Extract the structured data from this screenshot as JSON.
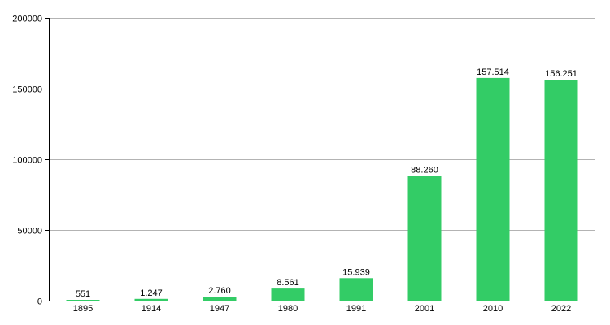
{
  "chart_data": {
    "type": "bar",
    "title": "",
    "xlabel": "",
    "ylabel": "",
    "categories": [
      "1895",
      "1914",
      "1947",
      "1980",
      "1991",
      "2001",
      "2010",
      "2022"
    ],
    "values": [
      551,
      1247,
      2760,
      8561,
      15939,
      88260,
      157514,
      156251
    ],
    "data_labels": [
      "551",
      "1.247",
      "2.760",
      "8.561",
      "15.939",
      "88.260",
      "157.514",
      "156.251"
    ],
    "ylim": [
      0,
      200000
    ],
    "yticks": [
      0,
      50000,
      100000,
      150000,
      200000
    ],
    "ytick_labels": [
      "0",
      "50000",
      "100000",
      "150000",
      "200000"
    ],
    "grid": true,
    "legend": false,
    "colors": {
      "bar": "#33cc66",
      "grid": "#b3b3b3",
      "axis": "#000000"
    }
  }
}
